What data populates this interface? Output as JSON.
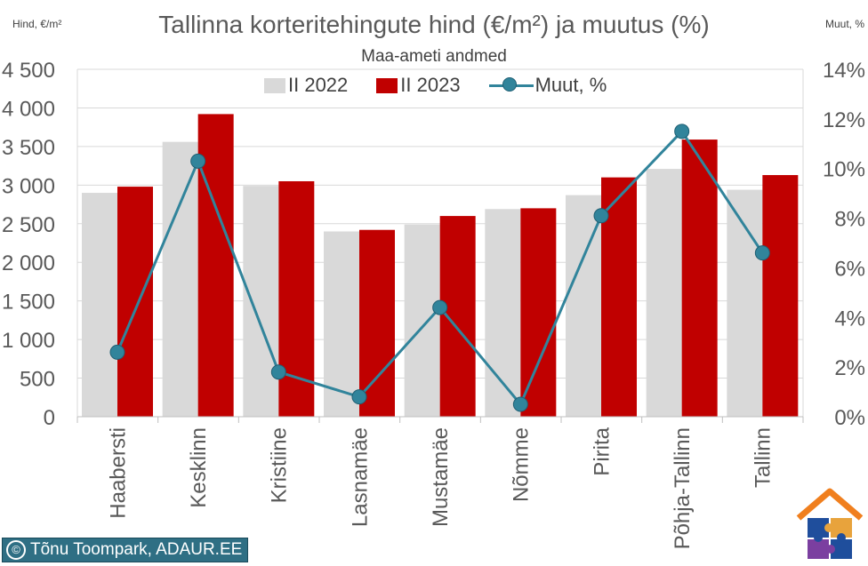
{
  "chart_data": {
    "type": "bar",
    "title": "Tallinna korteritehingute hind (€/m²) ja muutus (%)",
    "subtitle": "Maa-ameti andmed",
    "ylabel_left": "Hind, €/m²",
    "ylabel_right": "Muut, %",
    "categories": [
      "Haabersti",
      "Kesklinn",
      "Kristiine",
      "Lasnamäe",
      "Mustamäe",
      "Nõmme",
      "Pirita",
      "Põhja-Tallinn",
      "Tallinn"
    ],
    "series": [
      {
        "name": "II 2022",
        "kind": "bar",
        "axis": "left",
        "values": [
          2900,
          3560,
          2990,
          2400,
          2490,
          2690,
          2870,
          3210,
          2940
        ]
      },
      {
        "name": "II 2023",
        "kind": "bar",
        "axis": "left",
        "values": [
          2980,
          3920,
          3050,
          2420,
          2600,
          2700,
          3100,
          3590,
          3130
        ]
      },
      {
        "name": "Muut, %",
        "kind": "line",
        "axis": "right",
        "values": [
          2.6,
          10.3,
          1.8,
          0.8,
          4.4,
          0.5,
          8.1,
          11.5,
          6.6
        ]
      }
    ],
    "ylim_left": [
      0,
      4500
    ],
    "yticks_left": [
      "0",
      "500",
      "1 000",
      "1 500",
      "2 000",
      "2 500",
      "3 000",
      "3 500",
      "4 000",
      "4 500"
    ],
    "ylim_right": [
      0,
      14
    ],
    "yticks_right": [
      "0%",
      "2%",
      "4%",
      "6%",
      "8%",
      "10%",
      "12%",
      "14%"
    ],
    "grid": "horizontal",
    "legend_position": "top",
    "colors": {
      "bar_2022": "#d9d9d9",
      "bar_2023": "#c00000",
      "line": "#31849b",
      "marker": "#31849b",
      "grid": "#d9d9d9",
      "axis_text": "#595959"
    }
  },
  "credit": {
    "symbol": "©",
    "text": "Tõnu Toompark, ADAUR.EE"
  },
  "logo": {
    "icon": "house-puzzle-logo",
    "colors": [
      "#f07f1e",
      "#1f4e9c",
      "#7b3fa0",
      "#e8a33c"
    ]
  }
}
